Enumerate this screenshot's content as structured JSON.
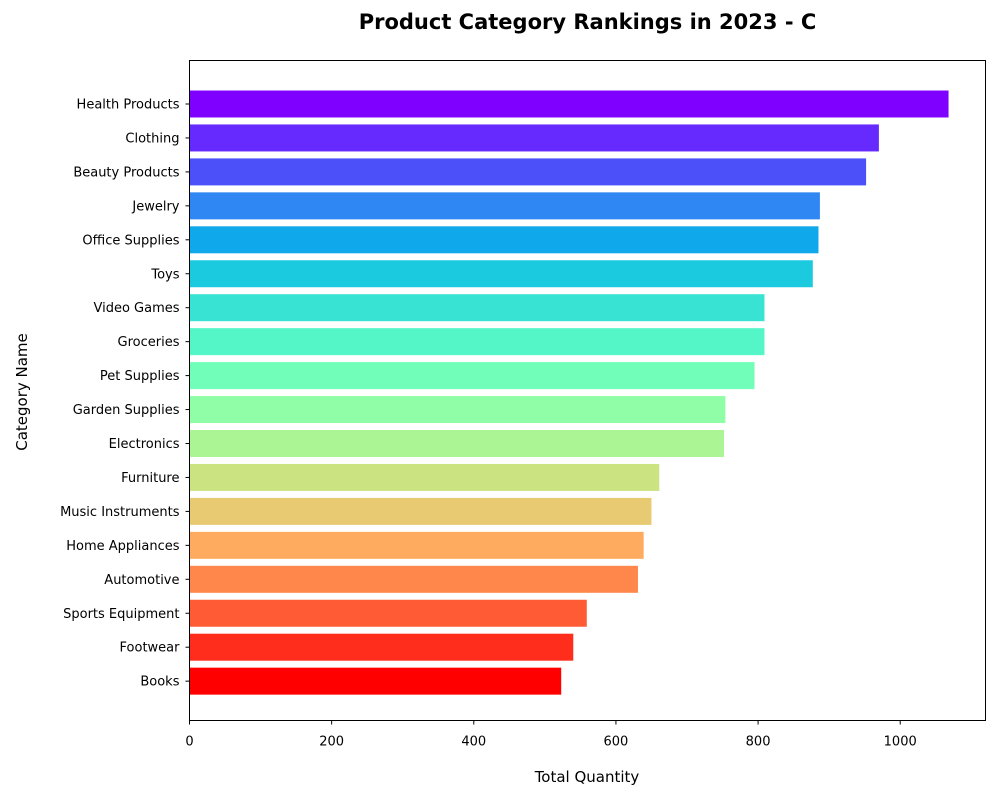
{
  "chart_data": {
    "type": "bar",
    "orientation": "horizontal",
    "title": "Product Category Rankings in 2023 - C",
    "xlabel": "Total Quantity",
    "ylabel": "Category Name",
    "xlim": [
      0,
      1120
    ],
    "xticks": [
      0,
      200,
      400,
      600,
      800,
      1000
    ],
    "grid": false,
    "categories": [
      "Health Products",
      "Clothing",
      "Beauty Products",
      "Jewelry",
      "Office Supplies",
      "Toys",
      "Video Games",
      "Groceries",
      "Pet Supplies",
      "Garden Supplies",
      "Electronics",
      "Furniture",
      "Music Instruments",
      "Home Appliances",
      "Automotive",
      "Sports Equipment",
      "Footwear",
      "Books"
    ],
    "values": [
      1068,
      970,
      952,
      887,
      885,
      877,
      809,
      809,
      795,
      754,
      752,
      661,
      650,
      639,
      631,
      559,
      540,
      523
    ],
    "colors": [
      "#8000ff",
      "#6629fe",
      "#4b50f9",
      "#2e87f2",
      "#0fa8ea",
      "#1ccae0",
      "#38e3d4",
      "#54f5c6",
      "#70feb8",
      "#8ffea7",
      "#acf594",
      "#cce382",
      "#e8ca73",
      "#ffab5f",
      "#ff874b",
      "#ff5c36",
      "#ff2e1c",
      "#ff0000"
    ]
  }
}
